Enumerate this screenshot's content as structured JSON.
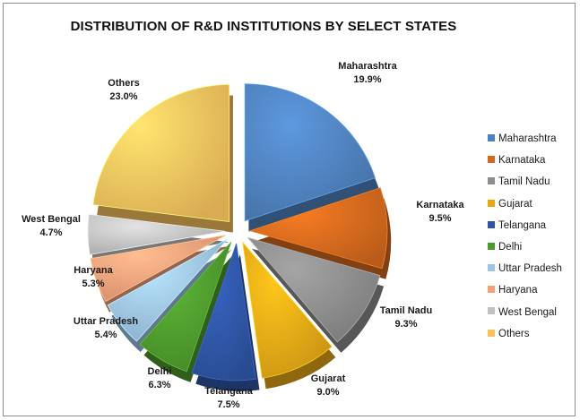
{
  "chart_data": {
    "type": "pie",
    "title": "DISTRIBUTION OF R&D INSTITUTIONS BY SELECT STATES",
    "slices": [
      {
        "name": "Maharashtra",
        "value": 19.9,
        "label": "19.9%",
        "color": "#4f81bd"
      },
      {
        "name": "Karnataka",
        "value": 9.5,
        "label": "9.5%",
        "color": "#d2691e"
      },
      {
        "name": "Tamil Nadu",
        "value": 9.3,
        "label": "9.3%",
        "color": "#8c8c8c"
      },
      {
        "name": "Gujarat",
        "value": 9.0,
        "label": "9.0%",
        "color": "#e6a817"
      },
      {
        "name": "Telangana",
        "value": 7.5,
        "label": "7.5%",
        "color": "#2f55a4"
      },
      {
        "name": "Delhi",
        "value": 6.3,
        "label": "6.3%",
        "color": "#4e9a2e"
      },
      {
        "name": "Uttar Pradesh",
        "value": 5.4,
        "label": "5.4%",
        "color": "#9dc3e6"
      },
      {
        "name": "Haryana",
        "value": 5.3,
        "label": "5.3%",
        "color": "#f4a07a"
      },
      {
        "name": "West Bengal",
        "value": 4.7,
        "label": "4.7%",
        "color": "#c0c0c0"
      },
      {
        "name": "Others",
        "value": 23.0,
        "label": "23.0%",
        "color": "#f7c25e"
      }
    ],
    "legend_position": "right",
    "exploded": true,
    "style": "3d"
  }
}
